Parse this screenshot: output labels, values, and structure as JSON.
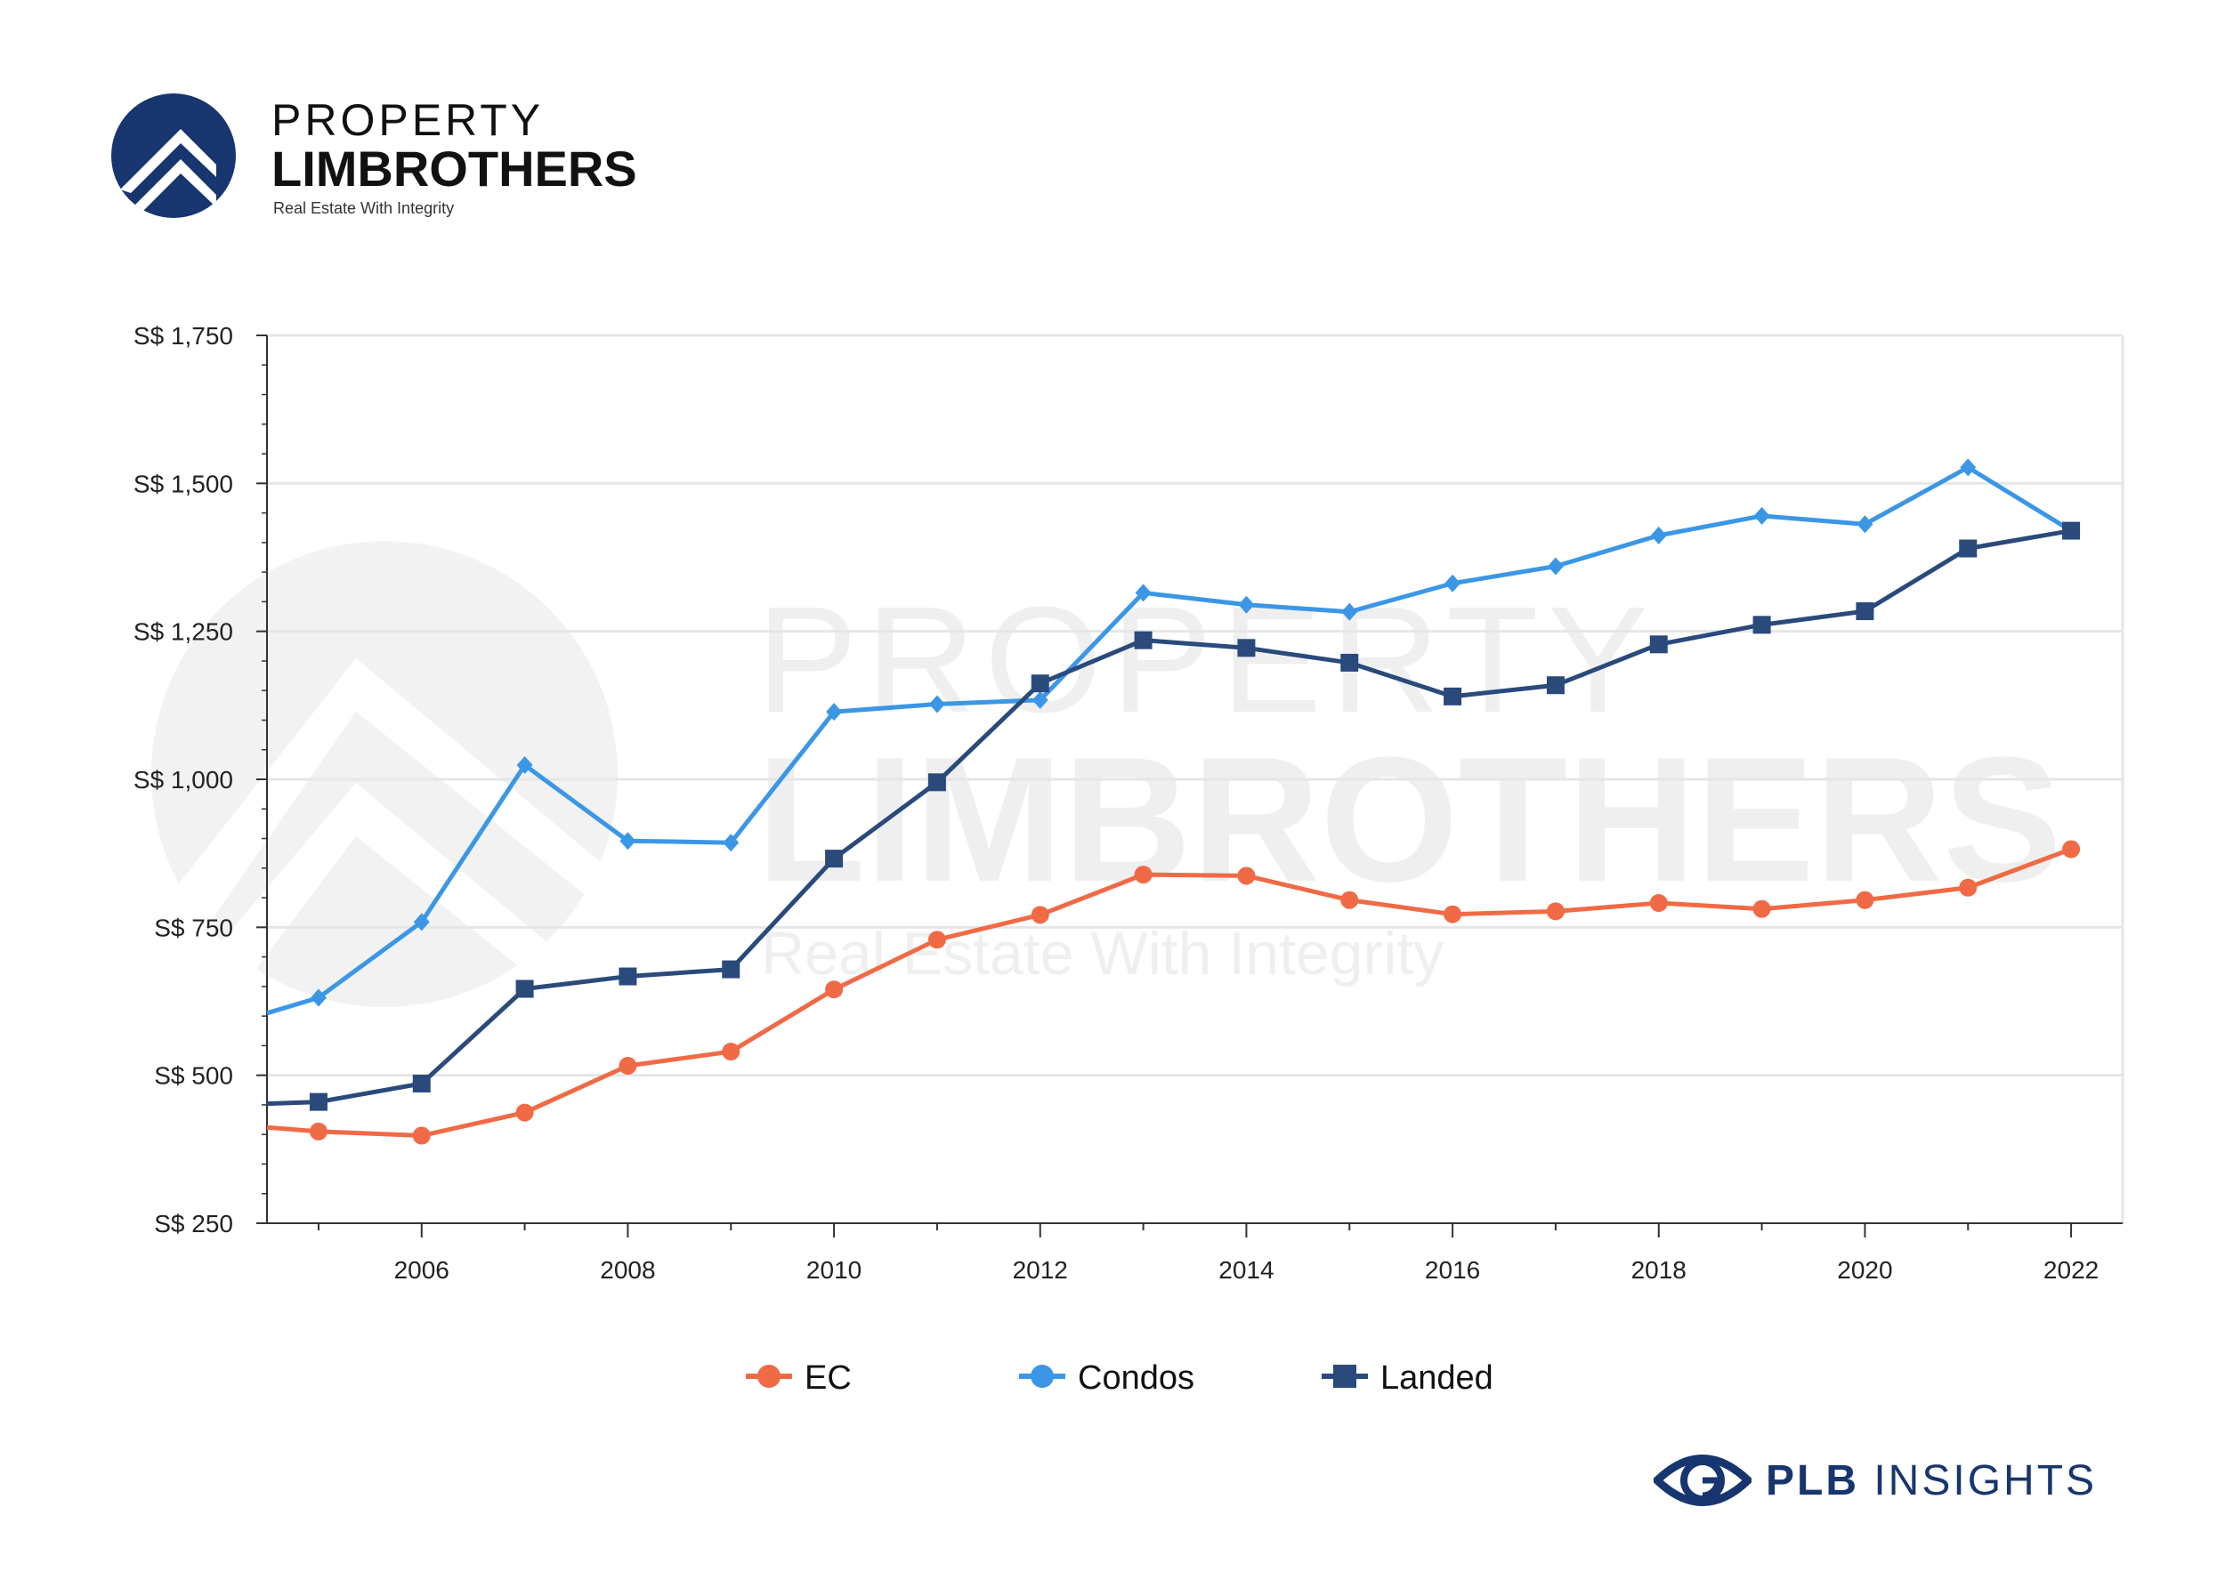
{
  "brand": {
    "name_top": "PROPERTY",
    "name_main": "LIMBROTHERS",
    "tagline": "Real Estate With Integrity"
  },
  "watermark": {
    "line1": "PROPERTY",
    "line2": "LIMBROTHERS",
    "line3": "Real Estate With Integrity"
  },
  "footer": {
    "bold": "PLB",
    "rest": "INSIGHTS",
    "icon": "eye-icon"
  },
  "colors": {
    "ec": "#f06a45",
    "condos": "#3b97e6",
    "landed": "#2a4a7c",
    "brand": "#17356e"
  },
  "chart_data": {
    "type": "line",
    "x": [
      2004.5,
      2005,
      2006,
      2007,
      2008,
      2009,
      2010,
      2011,
      2012,
      2013,
      2014,
      2015,
      2016,
      2017,
      2018,
      2019,
      2020,
      2021,
      2022
    ],
    "series": [
      {
        "name": "EC",
        "marker": "circle",
        "values": [
          412,
          405,
          398,
          437,
          516,
          540,
          645,
          729,
          771,
          839,
          837,
          796,
          772,
          777,
          791,
          781,
          796,
          817,
          882
        ]
      },
      {
        "name": "Condos",
        "marker": "diamond",
        "values": [
          605,
          631,
          759,
          1024,
          896,
          893,
          1114,
          1127,
          1134,
          1315,
          1295,
          1283,
          1331,
          1360,
          1412,
          1445,
          1431,
          1527,
          1420
        ]
      },
      {
        "name": "Landed",
        "marker": "square",
        "values": [
          452,
          455,
          486,
          646,
          667,
          679,
          866,
          995,
          1162,
          1235,
          1222,
          1197,
          1140,
          1159,
          1228,
          1261,
          1284,
          1390,
          1420
        ]
      }
    ],
    "xticks": [
      "2006",
      "2008",
      "2010",
      "2012",
      "2014",
      "2016",
      "2018",
      "2020",
      "2022"
    ],
    "yticks": [
      "S$ 250",
      "S$ 500",
      "S$ 750",
      "S$ 1,000",
      "S$ 1,250",
      "S$ 1,500",
      "S$ 1,750"
    ],
    "xlim": [
      2004.5,
      2022.5
    ],
    "ylim": [
      250,
      1750
    ],
    "grid": "horizontal",
    "legend": "bottom",
    "title": "",
    "xlabel": "",
    "ylabel": ""
  }
}
